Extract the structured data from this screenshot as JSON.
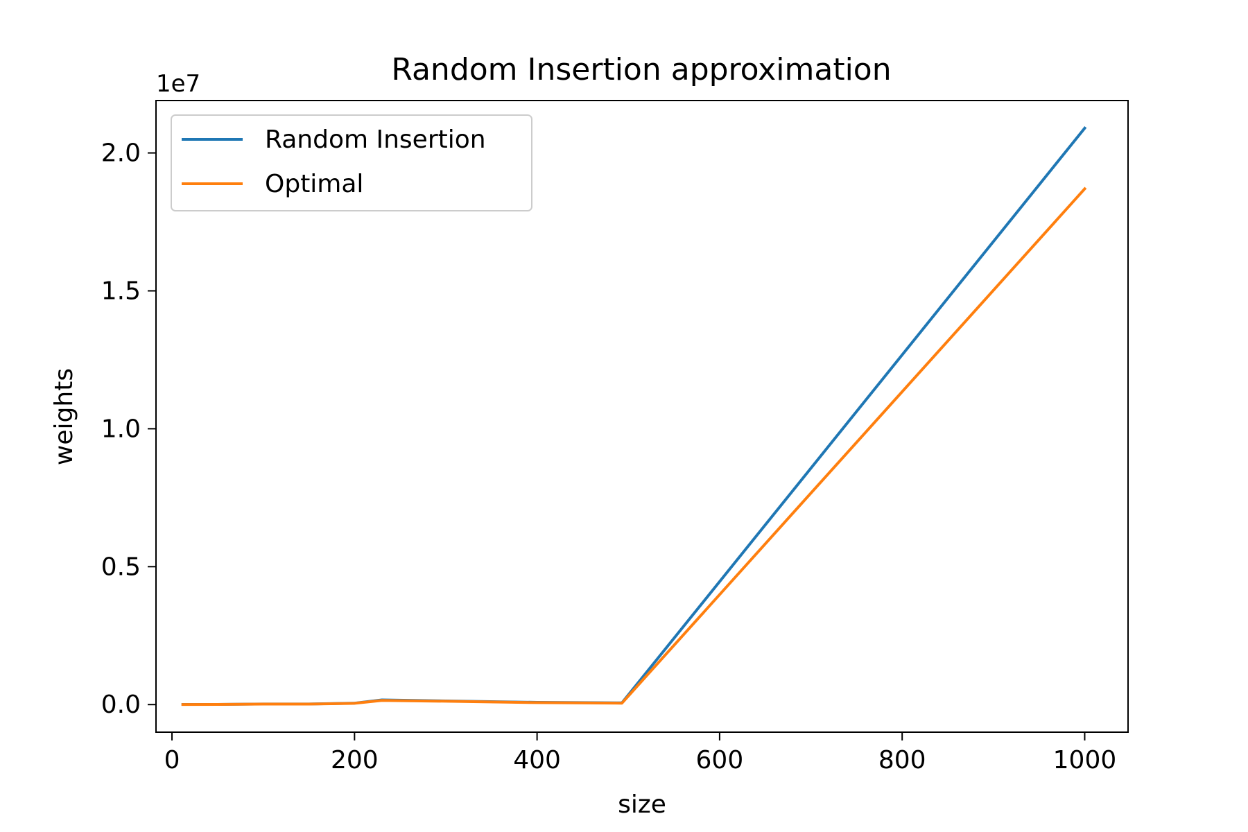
{
  "chart_data": {
    "type": "line",
    "title": "Random Insertion approximation",
    "xlabel": "size",
    "ylabel": "weights",
    "y_offset_label": "1e7",
    "xlim": [
      -17.5,
      1047.5
    ],
    "ylim": [
      -1000000,
      21900000
    ],
    "x_ticks": [
      0,
      200,
      400,
      600,
      800,
      1000
    ],
    "x_tick_labels": [
      "0",
      "200",
      "400",
      "600",
      "800",
      "1000"
    ],
    "y_ticks": [
      0,
      5000000,
      10000000,
      15000000,
      20000000
    ],
    "y_tick_labels": [
      "0.0",
      "0.5",
      "1.0",
      "1.5",
      "2.0"
    ],
    "grid": false,
    "legend_position": "upper-left",
    "series": [
      {
        "name": "Random Insertion",
        "color": "#1f77b4",
        "x": [
          12,
          50,
          100,
          150,
          200,
          230,
          300,
          400,
          493,
          1000
        ],
        "y": [
          5000,
          6000,
          20000,
          20000,
          50000,
          170000,
          130000,
          80000,
          60000,
          20900000
        ]
      },
      {
        "name": "Optimal",
        "color": "#ff7f0e",
        "x": [
          12,
          50,
          100,
          150,
          200,
          230,
          300,
          400,
          493,
          1000
        ],
        "y": [
          4000,
          5000,
          18000,
          18000,
          45000,
          150000,
          120000,
          70000,
          50000,
          18700000
        ]
      }
    ]
  }
}
